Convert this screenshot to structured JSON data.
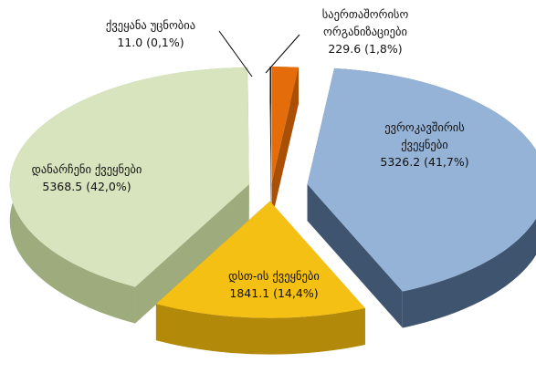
{
  "chart_data": {
    "type": "pie3d",
    "categories": [
      "საერთაშორისო ორგანიზაციები",
      "ევროკავშირის ქვეყნები",
      "დსთ-ის ქვეყნები",
      "დანარჩენი ქვეყნები",
      "ქვეყანა უცნობია"
    ],
    "values": [
      229.6,
      5326.2,
      1841.1,
      5368.5,
      11.0
    ],
    "value_labels": [
      "229.6 (1,8%)",
      "5326.2 (41,7%)",
      "1841.1 (14,4%)",
      "5368.5 (42,0%)",
      "11.0 (0,1%)"
    ],
    "colors": [
      "#e46c0a",
      "#95b3d7",
      "#f5c014",
      "#d7e4bd",
      "#1a1a1a"
    ],
    "side_colors": [
      "#a94f06",
      "#3f546f",
      "#b3890a",
      "#9dab7d",
      "#000000"
    ]
  }
}
